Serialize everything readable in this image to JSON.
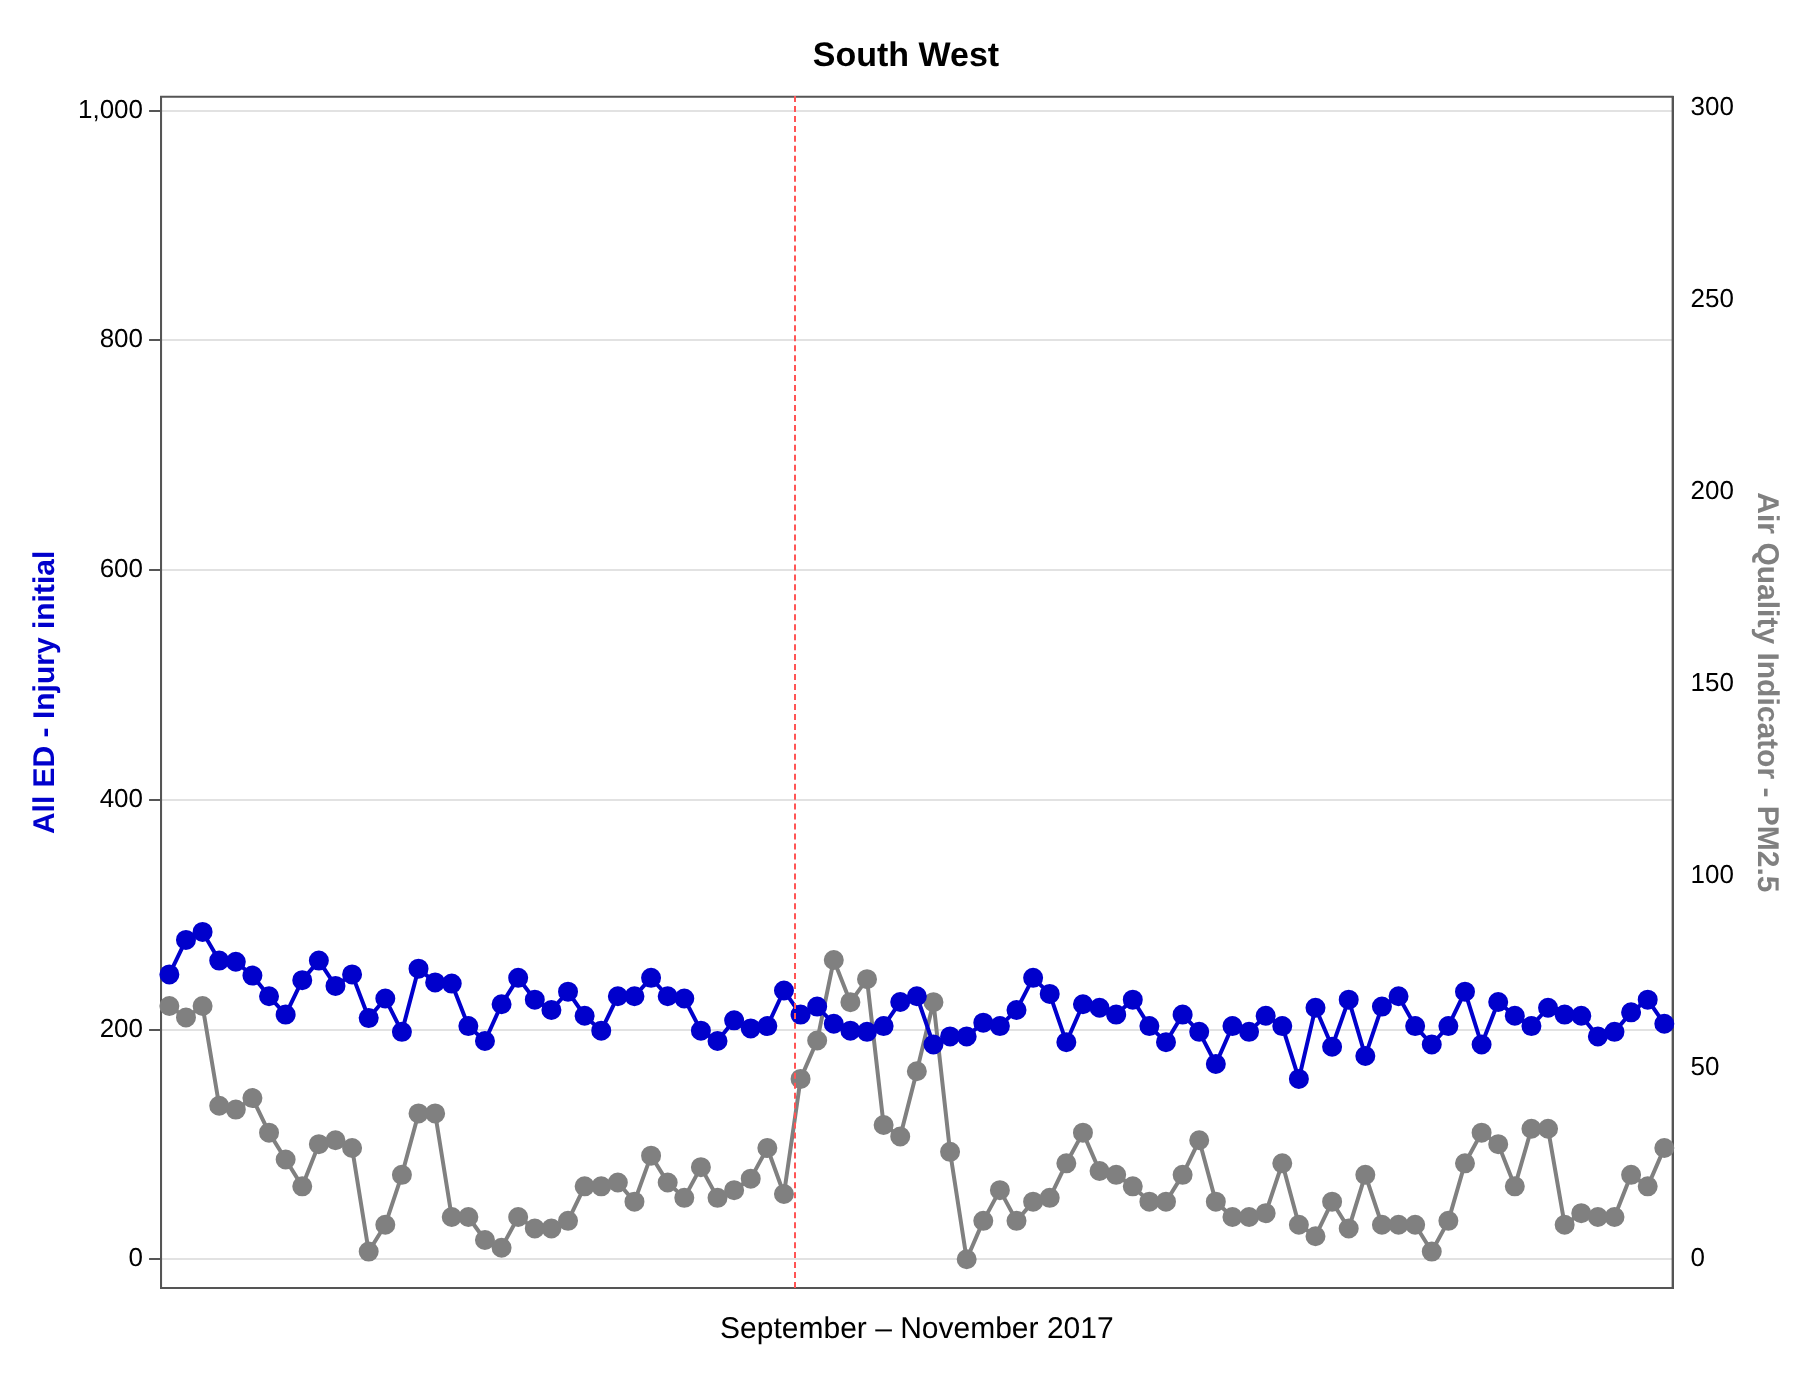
{
  "chart_data": {
    "type": "line",
    "title": "South West",
    "xlabel": "September – November 2017",
    "ylabel": "All ED - Injury initial",
    "y2label": "Air Quality Indicator - PM2.5",
    "categories": [
      null,
      null,
      null,
      null,
      null,
      null,
      null,
      null,
      null,
      null,
      null,
      null,
      null,
      null,
      null,
      null,
      null,
      null,
      null,
      null,
      null,
      null,
      null,
      null,
      null,
      null,
      null,
      null,
      null,
      null,
      null,
      null,
      null,
      null,
      null,
      null,
      null,
      null,
      null,
      null,
      null,
      null,
      null,
      null,
      null,
      null,
      null,
      null,
      null,
      null,
      null,
      null,
      null,
      null,
      null,
      null,
      null,
      null,
      null,
      null,
      null,
      null,
      null,
      null,
      null,
      null,
      null,
      null,
      null,
      null,
      null,
      null,
      null,
      null,
      null,
      null,
      null,
      null,
      null,
      null,
      null,
      null,
      null,
      null,
      null,
      null,
      null,
      null,
      null,
      null,
      null
    ],
    "series": [
      {
        "color": "#0000cc",
        "axis": "y",
        "values": [
          248,
          278,
          285,
          260,
          259,
          247,
          229,
          213,
          243,
          260,
          238,
          248,
          210,
          227,
          198,
          253,
          241,
          240,
          203,
          190,
          222,
          245,
          226,
          217,
          233,
          212,
          199,
          229,
          229,
          245,
          229,
          227,
          199,
          190,
          208,
          201,
          203,
          234,
          213,
          220,
          205,
          199,
          198,
          203,
          224,
          229,
          187,
          194,
          194,
          206,
          203,
          217,
          245,
          231,
          189,
          222,
          219,
          213,
          226,
          203,
          189,
          213,
          198,
          170,
          203,
          198,
          212,
          203,
          157,
          219,
          185,
          226,
          177,
          220,
          229,
          203,
          187,
          203,
          233,
          187,
          224,
          212,
          203,
          219,
          213,
          212,
          194,
          198,
          215,
          226,
          205
        ]
      },
      {
        "color": "#808080",
        "axis": "y2",
        "values": [
          66,
          63,
          66,
          40,
          39,
          42,
          33,
          26,
          19,
          30,
          31,
          29,
          2,
          9,
          22,
          38,
          38,
          11,
          11,
          5,
          3,
          11,
          8,
          8,
          10,
          19,
          19,
          20,
          15,
          27,
          20,
          16,
          24,
          16,
          18,
          21,
          29,
          17,
          47,
          57,
          78,
          67,
          73,
          35,
          32,
          49,
          67,
          28,
          0,
          10,
          18,
          10,
          15,
          16,
          25,
          33,
          23,
          22,
          19,
          15,
          15,
          22,
          31,
          15,
          11,
          11,
          12,
          25,
          9,
          6,
          15,
          8,
          22,
          9,
          9,
          9,
          2,
          10,
          25,
          33,
          30,
          19,
          34,
          34,
          9,
          12,
          11,
          11,
          22,
          19,
          29
        ]
      }
    ],
    "ylim": [
      -25,
      1012
    ],
    "yticks": [
      0,
      200,
      400,
      600,
      800,
      {
        "value": 1000,
        "label": "1,000"
      }
    ],
    "y2lim": [
      -7.5,
      303
    ],
    "y2ticks": [
      0,
      50,
      100,
      150,
      200,
      250,
      300
    ],
    "grid": "y",
    "marker": "circle",
    "line_style": "solid",
    "tick_labels": "y",
    "legend": false
  }
}
